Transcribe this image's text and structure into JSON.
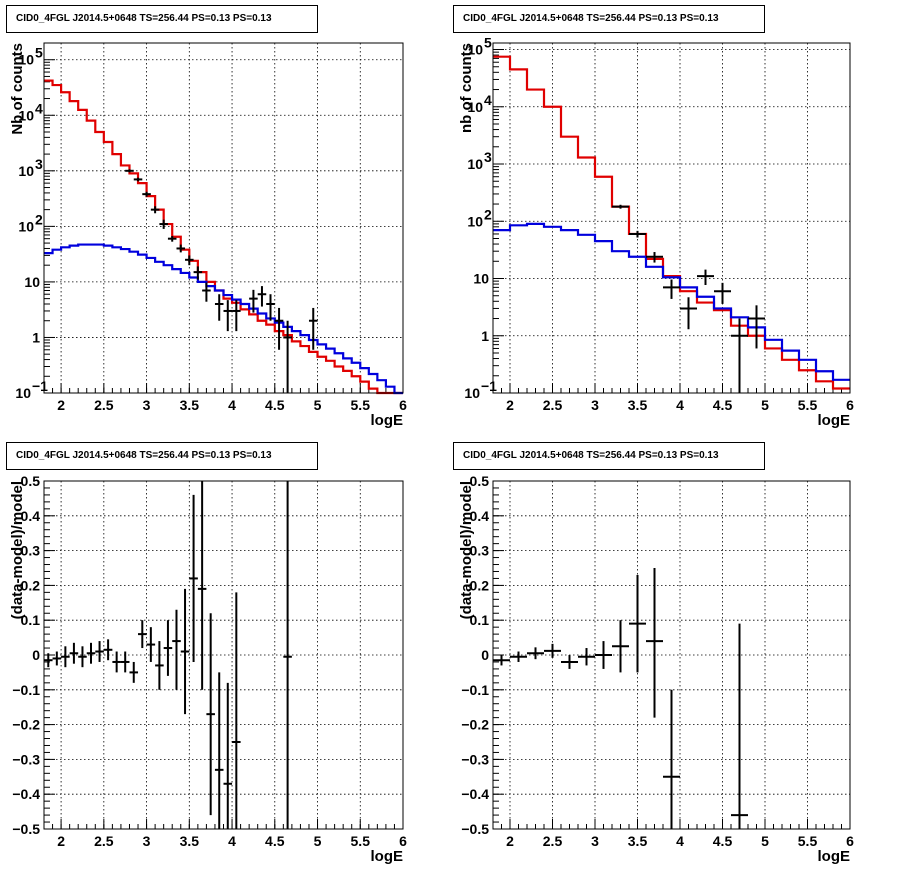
{
  "chart_data": [
    {
      "id": "p1",
      "type": "histogram",
      "title": "CID0_4FGL J2014.5+0648 TS=256.44 PS=0.13 PS=0.13",
      "xlabel": "logE",
      "ylabel": "Nb of counts",
      "log_y": true,
      "xlim": [
        1.8,
        6.0
      ],
      "ylim": [
        0.1,
        200000
      ],
      "grid": true,
      "x_ticks": [
        2,
        2.5,
        3,
        3.5,
        4,
        4.5,
        5,
        5.5,
        6
      ],
      "x_tick_labels": [
        "2",
        "2.5",
        "3",
        "3.5",
        "4",
        "4.5",
        "5",
        "5.5",
        "6"
      ],
      "y_ticks": [
        {
          "v": 0.1,
          "b": "10",
          "e": "−1"
        },
        {
          "v": 1,
          "b": "1",
          "e": ""
        },
        {
          "v": 10,
          "b": "10",
          "e": ""
        },
        {
          "v": 100,
          "b": "10",
          "e": "2"
        },
        {
          "v": 1000,
          "b": "10",
          "e": "3"
        },
        {
          "v": 10000,
          "b": "10",
          "e": "4"
        },
        {
          "v": 100000,
          "b": "10",
          "e": "5"
        }
      ],
      "bin_edges": [
        1.8,
        1.9,
        2.0,
        2.1,
        2.2,
        2.3,
        2.4,
        2.5,
        2.6,
        2.7,
        2.8,
        2.9,
        3.0,
        3.1,
        3.2,
        3.3,
        3.4,
        3.5,
        3.6,
        3.7,
        3.8,
        3.9,
        4.0,
        4.1,
        4.2,
        4.3,
        4.4,
        4.5,
        4.6,
        4.7,
        4.8,
        4.9,
        5.0,
        5.1,
        5.2,
        5.3,
        5.4,
        5.5,
        5.6,
        5.7,
        5.8,
        5.9,
        6.0
      ],
      "series": [
        {
          "color": "#e00000",
          "values": [
            42000,
            35000,
            26000,
            18000,
            12500,
            8000,
            5000,
            3300,
            2000,
            1250,
            900,
            600,
            350,
            200,
            110,
            65,
            38,
            24,
            15,
            10,
            7,
            5,
            4.2,
            3.2,
            2.6,
            2.0,
            1.7,
            1.3,
            1.1,
            0.85,
            0.7,
            0.55,
            0.45,
            0.38,
            0.3,
            0.25,
            0.2,
            0.16,
            0.12,
            0.1,
            0.08,
            0.06
          ]
        },
        {
          "color": "#0000dd",
          "values": [
            33,
            38,
            42,
            45,
            47,
            47,
            47,
            45,
            42,
            39,
            35,
            31,
            27,
            23,
            20,
            17,
            14.5,
            12,
            10,
            8.4,
            7,
            5.8,
            4.8,
            4,
            3.3,
            2.7,
            2.2,
            1.85,
            1.55,
            1.3,
            1.1,
            0.9,
            0.75,
            0.63,
            0.52,
            0.42,
            0.35,
            0.28,
            0.22,
            0.17,
            0.13,
            0.1
          ]
        }
      ],
      "points": [
        {
          "x": 2.8,
          "y": 1000,
          "lo": 940,
          "hi": 1065
        },
        {
          "x": 2.9,
          "y": 700,
          "lo": 650,
          "hi": 753
        },
        {
          "x": 3.0,
          "y": 380,
          "lo": 342,
          "hi": 420
        },
        {
          "x": 3.1,
          "y": 200,
          "lo": 172,
          "hi": 230
        },
        {
          "x": 3.2,
          "y": 110,
          "lo": 90,
          "hi": 132
        },
        {
          "x": 3.3,
          "y": 60,
          "lo": 53,
          "hi": 67
        },
        {
          "x": 3.4,
          "y": 40,
          "lo": 34,
          "hi": 47
        },
        {
          "x": 3.5,
          "y": 25,
          "lo": 20,
          "hi": 30
        },
        {
          "x": 3.6,
          "y": 15,
          "lo": 11,
          "hi": 19
        },
        {
          "x": 3.7,
          "y": 7,
          "lo": 4.4,
          "hi": 9.7
        },
        {
          "x": 3.85,
          "y": 4,
          "lo": 2,
          "hi": 6
        },
        {
          "x": 3.95,
          "y": 3,
          "lo": 1.3,
          "hi": 4.7
        },
        {
          "x": 4.05,
          "y": 3,
          "lo": 1.3,
          "hi": 4.7
        },
        {
          "x": 4.25,
          "y": 5,
          "lo": 2.8,
          "hi": 7.2
        },
        {
          "x": 4.35,
          "y": 6,
          "lo": 3.6,
          "hi": 8.4
        },
        {
          "x": 4.45,
          "y": 4,
          "lo": 2,
          "hi": 6
        },
        {
          "x": 4.55,
          "y": 2,
          "lo": 0.6,
          "hi": 3.4
        },
        {
          "x": 4.65,
          "y": 1,
          "lo": 0.1,
          "hi": 2
        },
        {
          "x": 4.95,
          "y": 2,
          "lo": 0.6,
          "hi": 3.4
        }
      ],
      "xerr": 0.05
    },
    {
      "id": "p2",
      "type": "histogram",
      "title": "CID0_4FGL J2014.5+0648 TS=256.44 PS=0.13 PS=0.13",
      "xlabel": "logE",
      "ylabel": "nb of counts",
      "log_y": true,
      "xlim": [
        1.8,
        6.0
      ],
      "ylim": [
        0.1,
        130000
      ],
      "grid": true,
      "x_ticks": [
        2,
        2.5,
        3,
        3.5,
        4,
        4.5,
        5,
        5.5,
        6
      ],
      "x_tick_labels": [
        "2",
        "2.5",
        "3",
        "3.5",
        "4",
        "4.5",
        "5",
        "5.5",
        "6"
      ],
      "y_ticks": [
        {
          "v": 0.1,
          "b": "10",
          "e": "−1"
        },
        {
          "v": 1,
          "b": "1",
          "e": ""
        },
        {
          "v": 10,
          "b": "10",
          "e": ""
        },
        {
          "v": 100,
          "b": "10",
          "e": "2"
        },
        {
          "v": 1000,
          "b": "10",
          "e": "3"
        },
        {
          "v": 10000,
          "b": "10",
          "e": "4"
        },
        {
          "v": 100000,
          "b": "10",
          "e": "5"
        }
      ],
      "bin_edges": [
        1.8,
        2.0,
        2.2,
        2.4,
        2.6,
        2.8,
        3.0,
        3.2,
        3.4,
        3.6,
        3.8,
        4.0,
        4.2,
        4.4,
        4.6,
        4.8,
        5.0,
        5.2,
        5.4,
        5.6,
        5.8,
        6.0
      ],
      "series": [
        {
          "color": "#e00000",
          "values": [
            75000,
            45000,
            20000,
            10000,
            3000,
            1300,
            600,
            180,
            60,
            22,
            11,
            6,
            3.8,
            2.8,
            1.5,
            1.0,
            0.6,
            0.38,
            0.25,
            0.16,
            0.12
          ]
        },
        {
          "color": "#0000dd",
          "values": [
            70,
            85,
            90,
            80,
            70,
            58,
            45,
            30,
            24,
            16,
            10.5,
            7,
            4.8,
            3,
            2.1,
            1.4,
            0.85,
            0.55,
            0.38,
            0.24,
            0.17
          ]
        }
      ],
      "points": [
        {
          "x": 3.3,
          "y": 180,
          "lo": 166,
          "hi": 194
        },
        {
          "x": 3.5,
          "y": 60,
          "lo": 52,
          "hi": 68
        },
        {
          "x": 3.7,
          "y": 24,
          "lo": 19,
          "hi": 29
        },
        {
          "x": 3.9,
          "y": 7,
          "lo": 4.4,
          "hi": 9.6
        },
        {
          "x": 4.1,
          "y": 3,
          "lo": 1.3,
          "hi": 4.7
        },
        {
          "x": 4.3,
          "y": 11,
          "lo": 7.7,
          "hi": 14.3
        },
        {
          "x": 4.5,
          "y": 6,
          "lo": 3.6,
          "hi": 8.4
        },
        {
          "x": 4.7,
          "y": 1,
          "lo": 0.1,
          "hi": 2
        },
        {
          "x": 4.9,
          "y": 2,
          "lo": 0.6,
          "hi": 3.4
        }
      ],
      "xerr": 0.1
    },
    {
      "id": "p3",
      "type": "scatter",
      "title": "CID0_4FGL J2014.5+0648 TS=256.44 PS=0.13 PS=0.13",
      "xlabel": "logE",
      "ylabel": "(data-model)/model",
      "log_y": false,
      "xlim": [
        1.8,
        6.0
      ],
      "ylim": [
        -0.5,
        0.5
      ],
      "grid": true,
      "x_ticks": [
        2,
        2.5,
        3,
        3.5,
        4,
        4.5,
        5,
        5.5,
        6
      ],
      "x_tick_labels": [
        "2",
        "2.5",
        "3",
        "3.5",
        "4",
        "4.5",
        "5",
        "5.5",
        "6"
      ],
      "y_ticks": [
        {
          "v": -0.5,
          "b": "−0.5",
          "e": ""
        },
        {
          "v": -0.4,
          "b": "−0.4",
          "e": ""
        },
        {
          "v": -0.3,
          "b": "−0.3",
          "e": ""
        },
        {
          "v": -0.2,
          "b": "−0.2",
          "e": ""
        },
        {
          "v": -0.1,
          "b": "−0.1",
          "e": ""
        },
        {
          "v": 0,
          "b": "0",
          "e": ""
        },
        {
          "v": 0.1,
          "b": "0.1",
          "e": ""
        },
        {
          "v": 0.2,
          "b": "0.2",
          "e": ""
        },
        {
          "v": 0.3,
          "b": "0.3",
          "e": ""
        },
        {
          "v": 0.4,
          "b": "0.4",
          "e": ""
        },
        {
          "v": 0.5,
          "b": "0.5",
          "e": ""
        }
      ],
      "points": [
        {
          "x": 1.85,
          "y": -0.015,
          "lo": -0.035,
          "hi": 0.005
        },
        {
          "x": 1.95,
          "y": -0.01,
          "lo": -0.03,
          "hi": 0.01
        },
        {
          "x": 2.05,
          "y": -0.005,
          "lo": -0.035,
          "hi": 0.025
        },
        {
          "x": 2.15,
          "y": 0.005,
          "lo": -0.025,
          "hi": 0.035
        },
        {
          "x": 2.25,
          "y": -0.005,
          "lo": -0.035,
          "hi": 0.025
        },
        {
          "x": 2.35,
          "y": 0.005,
          "lo": -0.025,
          "hi": 0.035
        },
        {
          "x": 2.45,
          "y": 0.01,
          "lo": -0.02,
          "hi": 0.04
        },
        {
          "x": 2.55,
          "y": 0.015,
          "lo": -0.015,
          "hi": 0.045
        },
        {
          "x": 2.65,
          "y": -0.02,
          "lo": -0.05,
          "hi": 0.01
        },
        {
          "x": 2.75,
          "y": -0.02,
          "lo": -0.05,
          "hi": 0.01
        },
        {
          "x": 2.85,
          "y": -0.05,
          "lo": -0.08,
          "hi": -0.02
        },
        {
          "x": 2.95,
          "y": 0.06,
          "lo": 0.02,
          "hi": 0.1
        },
        {
          "x": 3.05,
          "y": 0.03,
          "lo": -0.02,
          "hi": 0.08
        },
        {
          "x": 3.15,
          "y": -0.03,
          "lo": -0.1,
          "hi": 0.04
        },
        {
          "x": 3.25,
          "y": 0.02,
          "lo": -0.06,
          "hi": 0.1
        },
        {
          "x": 3.35,
          "y": 0.04,
          "lo": -0.1,
          "hi": 0.13
        },
        {
          "x": 3.45,
          "y": 0.01,
          "lo": -0.17,
          "hi": 0.19
        },
        {
          "x": 3.55,
          "y": 0.22,
          "lo": -0.02,
          "hi": 0.46
        },
        {
          "x": 3.65,
          "y": 0.19,
          "lo": -0.1,
          "hi": 0.5
        },
        {
          "x": 3.75,
          "y": -0.17,
          "lo": -0.46,
          "hi": 0.12
        },
        {
          "x": 3.85,
          "y": -0.33,
          "lo": -0.5,
          "hi": -0.05
        },
        {
          "x": 3.95,
          "y": -0.37,
          "lo": -0.5,
          "hi": -0.08
        },
        {
          "x": 4.05,
          "y": -0.25,
          "lo": -0.5,
          "hi": 0.18
        },
        {
          "x": 4.65,
          "y": -0.005,
          "lo": -0.5,
          "hi": 0.5
        }
      ],
      "xerr": 0.05
    },
    {
      "id": "p4",
      "type": "scatter",
      "title": "CID0_4FGL J2014.5+0648 TS=256.44 PS=0.13 PS=0.13",
      "xlabel": "logE",
      "ylabel": "(data-model)/model",
      "log_y": false,
      "xlim": [
        1.8,
        6.0
      ],
      "ylim": [
        -0.5,
        0.5
      ],
      "grid": true,
      "x_ticks": [
        2,
        2.5,
        3,
        3.5,
        4,
        4.5,
        5,
        5.5,
        6
      ],
      "x_tick_labels": [
        "2",
        "2.5",
        "3",
        "3.5",
        "4",
        "4.5",
        "5",
        "5.5",
        "6"
      ],
      "y_ticks": [
        {
          "v": -0.5,
          "b": "−0.5",
          "e": ""
        },
        {
          "v": -0.4,
          "b": "−0.4",
          "e": ""
        },
        {
          "v": -0.3,
          "b": "−0.3",
          "e": ""
        },
        {
          "v": -0.2,
          "b": "−0.2",
          "e": ""
        },
        {
          "v": -0.1,
          "b": "−0.1",
          "e": ""
        },
        {
          "v": 0,
          "b": "0",
          "e": ""
        },
        {
          "v": 0.1,
          "b": "0.1",
          "e": ""
        },
        {
          "v": 0.2,
          "b": "0.2",
          "e": ""
        },
        {
          "v": 0.3,
          "b": "0.3",
          "e": ""
        },
        {
          "v": 0.4,
          "b": "0.4",
          "e": ""
        },
        {
          "v": 0.5,
          "b": "0.5",
          "e": ""
        }
      ],
      "points": [
        {
          "x": 1.9,
          "y": -0.015,
          "lo": -0.03,
          "hi": 0.0
        },
        {
          "x": 2.1,
          "y": -0.005,
          "lo": -0.02,
          "hi": 0.01
        },
        {
          "x": 2.3,
          "y": 0.005,
          "lo": -0.012,
          "hi": 0.022
        },
        {
          "x": 2.5,
          "y": 0.012,
          "lo": -0.008,
          "hi": 0.032
        },
        {
          "x": 2.7,
          "y": -0.02,
          "lo": -0.04,
          "hi": 0.0
        },
        {
          "x": 2.9,
          "y": -0.005,
          "lo": -0.03,
          "hi": 0.02
        },
        {
          "x": 3.1,
          "y": 0.0,
          "lo": -0.04,
          "hi": 0.04
        },
        {
          "x": 3.3,
          "y": 0.025,
          "lo": -0.05,
          "hi": 0.1
        },
        {
          "x": 3.5,
          "y": 0.09,
          "lo": -0.05,
          "hi": 0.23
        },
        {
          "x": 3.7,
          "y": 0.04,
          "lo": -0.18,
          "hi": 0.25
        },
        {
          "x": 3.9,
          "y": -0.35,
          "lo": -0.5,
          "hi": -0.1
        },
        {
          "x": 4.7,
          "y": -0.46,
          "lo": -0.5,
          "hi": 0.09
        }
      ],
      "xerr": 0.1
    }
  ]
}
